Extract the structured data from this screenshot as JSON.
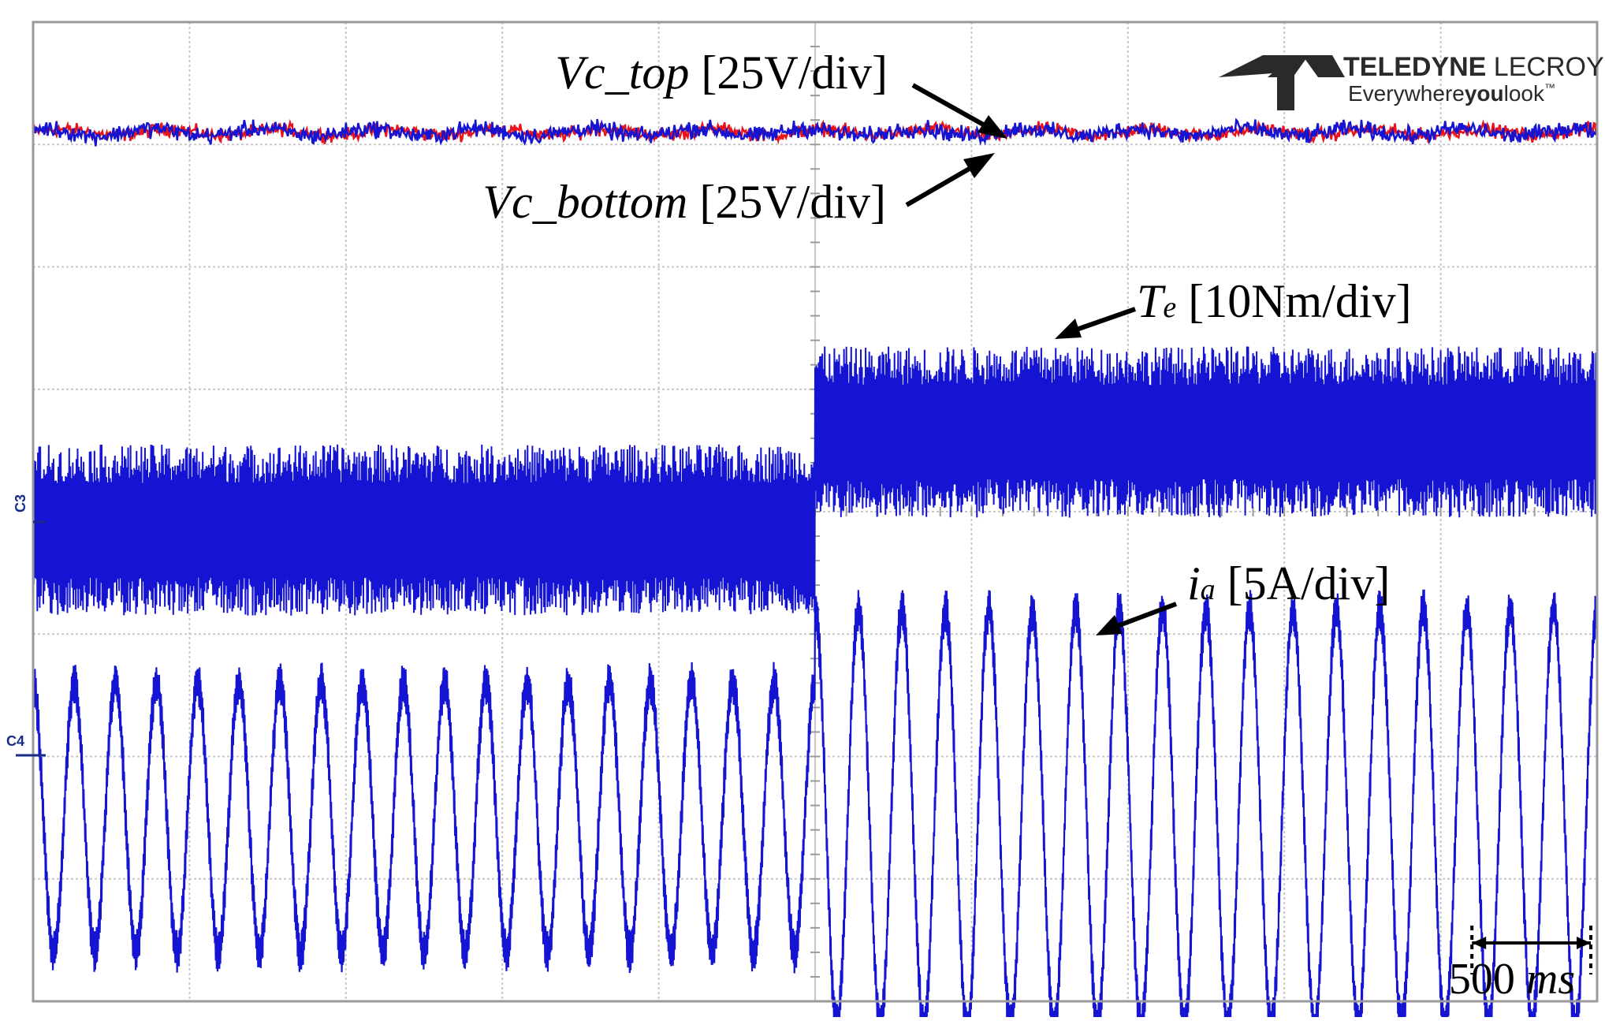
{
  "chart_data": {
    "type": "line",
    "title": "",
    "xlabel": "",
    "ylabel": "",
    "grid": true,
    "legend": "none",
    "divisions": {
      "x": 10,
      "y": 8
    },
    "step_time_div": 5,
    "series": [
      {
        "name": "Vc_top [25V/div]",
        "name_main": "Vc_top",
        "name_unit": "[25V/div]",
        "color": "#e8141a",
        "kind": "noise",
        "level_div": 7.1,
        "amp_before_div": 0.08,
        "amp_after_div": 0.08
      },
      {
        "name": "Vc_bottom [25V/div]",
        "name_main": "Vc_bottom",
        "name_unit": "[25V/div]",
        "color": "#1414d2",
        "kind": "noise",
        "level_div": 7.1,
        "amp_before_div": 0.1,
        "amp_after_div": 0.1
      },
      {
        "name": "Te [10Nm/div]",
        "name_sym": "T",
        "name_sub": "e",
        "name_unit": "[10Nm/div]",
        "color": "#1414d2",
        "kind": "noise_band",
        "level_before_div": 3.85,
        "level_after_div": 4.65,
        "halfwidth_before_div": 0.7,
        "halfwidth_after_div": 0.7
      },
      {
        "name": "ia [5A/div]",
        "name_sym": "i",
        "name_sub": "a",
        "name_unit": "[5A/div]",
        "color": "#1414d2",
        "kind": "sine",
        "center_div": 1.5,
        "amp_before_div": 1.1,
        "amp_after_div": 1.7,
        "cycles_before": 19,
        "cycles_after": 18
      }
    ],
    "channel_labels": [
      "C3",
      "C4"
    ],
    "scale_bar": {
      "value": "500",
      "unit": "ms",
      "length_div": 1.0
    }
  },
  "brand": {
    "name_bold": "TELEDYNE",
    "name_light": " LECROY",
    "tagline_a": "Everywhere",
    "tagline_b": "you",
    "tagline_c": "look",
    "tm": "™",
    "color": "#2a2a2a"
  }
}
